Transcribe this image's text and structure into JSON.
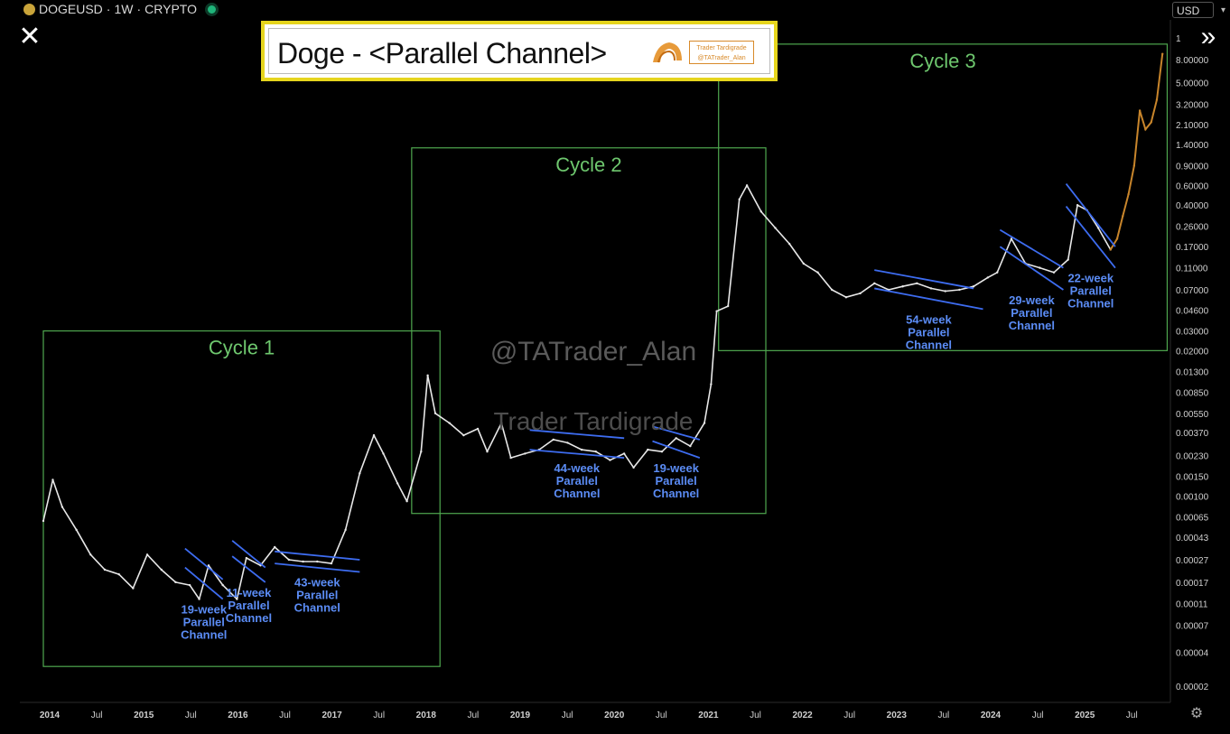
{
  "header": {
    "symbol": "DOGEUSD",
    "separator1": "·",
    "interval": "1W",
    "separator2": "·",
    "exchange": "CRYPTO"
  },
  "currency_select": "USD",
  "title_box": {
    "title": "Doge - <Parallel Channel>",
    "badge_line1": "Trader Tardigrade",
    "badge_line2": "@TATrader_Alan"
  },
  "watermarks": [
    "@TATrader_Alan",
    "Trader Tardigrade"
  ],
  "icons": {
    "close": "close-icon",
    "forward": "double-chevron-right-icon",
    "settings": "gear-icon",
    "logo": "tardigrade-logo-icon"
  },
  "colors": {
    "price": "#e8e8e8",
    "projection": "#c8852b",
    "channel": "#3d6cf0",
    "cycle_box": "#4fa84f",
    "label": "#5b8cf5",
    "cycle_label": "#6ec76e"
  },
  "chart_data": {
    "type": "line",
    "title": "Doge - <Parallel Channel>",
    "xlabel": "",
    "ylabel": "",
    "y_scale": "log",
    "x_ticks": [
      "2014",
      "Jul",
      "2015",
      "Jul",
      "2016",
      "Jul",
      "2017",
      "Jul",
      "2018",
      "Jul",
      "2019",
      "Jul",
      "2020",
      "Jul",
      "2021",
      "Jul",
      "2022",
      "Jul",
      "2023",
      "Jul",
      "2024",
      "Jul",
      "2025",
      "Jul"
    ],
    "y_ticks": [
      "0.00002",
      "0.00004",
      "0.00007",
      "0.00011",
      "0.00017",
      "0.00027",
      "0.00043",
      "0.00065",
      "0.00100",
      "0.00150",
      "0.00230",
      "0.00370",
      "0.00550",
      "0.00850",
      "0.01300",
      "0.02000",
      "0.03000",
      "0.04600",
      "0.07000",
      "0.11000",
      "0.17000",
      "0.26000",
      "0.40000",
      "0.60000",
      "0.90000",
      "1.40000",
      "2.10000",
      "3.20000",
      "5.00000",
      "8.00000"
    ],
    "y_top_partial": "1",
    "price_series": {
      "name": "DOGEUSD",
      "x": [
        2013.95,
        2014.05,
        2014.15,
        2014.3,
        2014.45,
        2014.6,
        2014.75,
        2014.9,
        2015.05,
        2015.2,
        2015.35,
        2015.5,
        2015.6,
        2015.7,
        2015.85,
        2016.0,
        2016.1,
        2016.25,
        2016.4,
        2016.55,
        2016.7,
        2016.85,
        2017.0,
        2017.15,
        2017.3,
        2017.45,
        2017.55,
        2017.7,
        2017.8,
        2017.95,
        2018.02,
        2018.1,
        2018.25,
        2018.4,
        2018.55,
        2018.65,
        2018.8,
        2018.9,
        2019.05,
        2019.2,
        2019.35,
        2019.5,
        2019.65,
        2019.8,
        2019.95,
        2020.1,
        2020.2,
        2020.35,
        2020.5,
        2020.65,
        2020.8,
        2020.95,
        2021.02,
        2021.08,
        2021.2,
        2021.32,
        2021.4,
        2021.55,
        2021.7,
        2021.85,
        2022.0,
        2022.15,
        2022.3,
        2022.45,
        2022.6,
        2022.75,
        2022.9,
        2023.05,
        2023.2,
        2023.35,
        2023.5,
        2023.65,
        2023.8,
        2023.95,
        2024.05,
        2024.2,
        2024.35,
        2024.5,
        2024.65,
        2024.8,
        2024.9,
        2025.0,
        2025.12,
        2025.25
      ],
      "values": [
        0.0006,
        0.0014,
        0.0008,
        0.0005,
        0.0003,
        0.00022,
        0.0002,
        0.00015,
        0.0003,
        0.00022,
        0.00017,
        0.00016,
        0.00012,
        0.00024,
        0.00016,
        0.00012,
        0.00028,
        0.00024,
        0.00035,
        0.00027,
        0.00026,
        0.00026,
        0.00025,
        0.0005,
        0.0016,
        0.0035,
        0.0024,
        0.0013,
        0.0009,
        0.0025,
        0.012,
        0.0055,
        0.0045,
        0.0035,
        0.004,
        0.0025,
        0.0045,
        0.0022,
        0.0024,
        0.0026,
        0.0032,
        0.003,
        0.0026,
        0.0025,
        0.0021,
        0.0024,
        0.0018,
        0.0026,
        0.0025,
        0.0033,
        0.0028,
        0.0045,
        0.01,
        0.045,
        0.05,
        0.45,
        0.6,
        0.35,
        0.25,
        0.18,
        0.12,
        0.1,
        0.07,
        0.06,
        0.065,
        0.08,
        0.07,
        0.075,
        0.08,
        0.072,
        0.068,
        0.07,
        0.075,
        0.09,
        0.1,
        0.2,
        0.12,
        0.11,
        0.1,
        0.13,
        0.4,
        0.36,
        0.25,
        0.16
      ]
    },
    "projection_series": {
      "name": "",
      "x": [
        2025.25,
        2025.32,
        2025.38,
        2025.44,
        2025.5,
        2025.56,
        2025.62,
        2025.68,
        2025.74,
        2025.8
      ],
      "values": [
        0.16,
        0.2,
        0.32,
        0.5,
        0.9,
        2.8,
        1.9,
        2.2,
        3.5,
        9.0
      ]
    },
    "cycles": [
      {
        "label": "Cycle 1",
        "x_range": [
          2013.95,
          2018.15
        ],
        "y_range": [
          3e-05,
          0.03
        ]
      },
      {
        "label": "Cycle 2",
        "x_range": [
          2017.85,
          2021.6
        ],
        "y_range": [
          0.0007,
          1.3
        ]
      },
      {
        "label": "Cycle 3",
        "x_range": [
          2021.1,
          2025.85
        ],
        "y_range": [
          0.02,
          11.0
        ]
      }
    ],
    "channels": [
      {
        "label": [
          "19-week",
          "Parallel",
          "Channel"
        ],
        "upper": [
          [
            2015.45,
            0.00034
          ],
          [
            2015.85,
            0.00018
          ]
        ],
        "lower": [
          [
            2015.45,
            0.00023
          ],
          [
            2015.85,
            0.00012
          ]
        ]
      },
      {
        "label": [
          "11-week",
          "Parallel",
          "Channel"
        ],
        "upper": [
          [
            2015.95,
            0.0004
          ],
          [
            2016.3,
            0.00023
          ]
        ],
        "lower": [
          [
            2015.95,
            0.00029
          ],
          [
            2016.3,
            0.00017
          ]
        ]
      },
      {
        "label": [
          "43-week",
          "Parallel",
          "Channel"
        ],
        "upper": [
          [
            2016.4,
            0.00032
          ],
          [
            2017.3,
            0.00027
          ]
        ],
        "lower": [
          [
            2016.4,
            0.00025
          ],
          [
            2017.3,
            0.00021
          ]
        ]
      },
      {
        "label": [
          "44-week",
          "Parallel",
          "Channel"
        ],
        "upper": [
          [
            2019.1,
            0.0039
          ],
          [
            2020.1,
            0.0033
          ]
        ],
        "lower": [
          [
            2019.1,
            0.0026
          ],
          [
            2020.1,
            0.0022
          ]
        ]
      },
      {
        "label": [
          "19-week",
          "Parallel",
          "Channel"
        ],
        "upper": [
          [
            2020.4,
            0.0042
          ],
          [
            2020.9,
            0.0032
          ]
        ],
        "lower": [
          [
            2020.4,
            0.0031
          ],
          [
            2020.9,
            0.0022
          ]
        ]
      },
      {
        "label": [
          "54-week",
          "Parallel",
          "Channel"
        ],
        "upper": [
          [
            2022.75,
            0.105
          ],
          [
            2023.8,
            0.072
          ]
        ],
        "lower": [
          [
            2022.75,
            0.072
          ],
          [
            2023.9,
            0.047
          ]
        ]
      },
      {
        "label": [
          "29-week",
          "Parallel",
          "Channel"
        ],
        "upper": [
          [
            2024.08,
            0.24
          ],
          [
            2024.75,
            0.11
          ]
        ],
        "lower": [
          [
            2024.08,
            0.17
          ],
          [
            2024.75,
            0.07
          ]
        ]
      },
      {
        "label": [
          "22-week",
          "Parallel",
          "Channel"
        ],
        "upper": [
          [
            2024.78,
            0.62
          ],
          [
            2025.3,
            0.17
          ]
        ],
        "lower": [
          [
            2024.78,
            0.39
          ],
          [
            2025.3,
            0.11
          ]
        ]
      }
    ]
  }
}
